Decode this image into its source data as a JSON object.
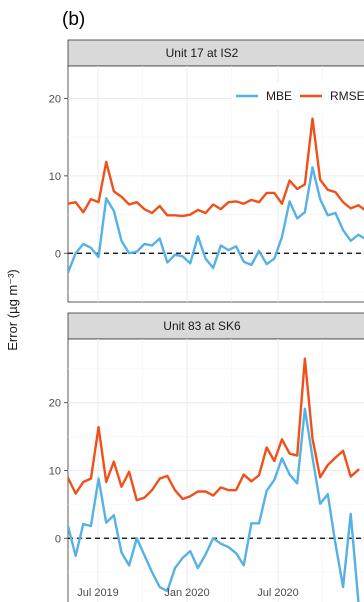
{
  "panel_tag": "(b)",
  "chart_data": {
    "type": "line",
    "ylabel": "Error (µg m⁻³)",
    "x_ticks": [
      "Jul 2019",
      "Jan 2020",
      "Jul 2020"
    ],
    "legend": [
      {
        "name": "MBE",
        "color": "#56b1e6"
      },
      {
        "name": "RMSE",
        "color": "#f0501a"
      }
    ],
    "colors": {
      "MBE": "#56b1e6",
      "RMSE": "#f0501a"
    },
    "panels": [
      {
        "title": "Unit 17 at IS2",
        "y_ticks": [
          0,
          10,
          20
        ],
        "ylim": [
          -6.3,
          24.2
        ],
        "zero_line": true,
        "series": [
          {
            "name": "MBE",
            "values": [
              -2.5,
              0,
              1.2,
              0.7,
              -0.5,
              7.1,
              5.5,
              1.6,
              0,
              0.2,
              1.2,
              1,
              1.9,
              -1.2,
              -0.2,
              -0.4,
              -1.3,
              2.2,
              -0.7,
              -1.9,
              1,
              0.4,
              0.9,
              -1.1,
              -1.5,
              0.3,
              -1.4,
              -0.7,
              2.1,
              6.7,
              4.5,
              5.3,
              11.1,
              7,
              4.9,
              5.2,
              3,
              1.6,
              2.4,
              1.8
            ]
          },
          {
            "name": "RMSE",
            "values": [
              6.4,
              6.6,
              5.3,
              7,
              6.6,
              11.8,
              8,
              7.3,
              6.3,
              6.6,
              5.7,
              5.2,
              6.1,
              4.9,
              4.9,
              4.8,
              5,
              5.6,
              5.2,
              6.3,
              5.7,
              6.6,
              6.7,
              6.4,
              6.9,
              6.6,
              7.8,
              7.8,
              6.4,
              9.4,
              8.3,
              8.9,
              17.4,
              9.5,
              8.2,
              7.9,
              6.6,
              5.8,
              6.2,
              5.5
            ]
          }
        ]
      },
      {
        "title": "Unit 83 at SK6",
        "y_ticks": [
          0,
          10,
          20
        ],
        "ylim": [
          -9.7,
          29.4
        ],
        "zero_line": true,
        "series": [
          {
            "name": "MBE",
            "values": [
              1.8,
              -2.6,
              2.1,
              1.8,
              8.8,
              2.3,
              3.4,
              -2.1,
              -4,
              0,
              -2.5,
              -5,
              -7.2,
              -7.8,
              -4.4,
              -2.9,
              -1.9,
              -4.4,
              -2.4,
              0,
              -0.8,
              -1.3,
              -2.2,
              -4,
              2.2,
              2.2,
              7,
              8.6,
              11.8,
              9.4,
              8.1,
              19.1,
              11.9,
              5.1,
              6.5,
              -0.8,
              -7.2,
              3.6,
              -9.3
            ]
          },
          {
            "name": "RMSE",
            "values": [
              8.9,
              6.6,
              8.3,
              8.8,
              16.4,
              8.3,
              11.3,
              7.6,
              9.8,
              5.6,
              6,
              7.1,
              8.8,
              9.2,
              7.1,
              5.8,
              6.2,
              6.9,
              6.9,
              6.3,
              7.5,
              7.1,
              7.1,
              9.4,
              8.4,
              9.3,
              13.4,
              11.4,
              14.6,
              12.5,
              12.2,
              26.5,
              14.7,
              9,
              10.8,
              11.9,
              12.9,
              9.1,
              10.1
            ]
          }
        ]
      }
    ]
  }
}
